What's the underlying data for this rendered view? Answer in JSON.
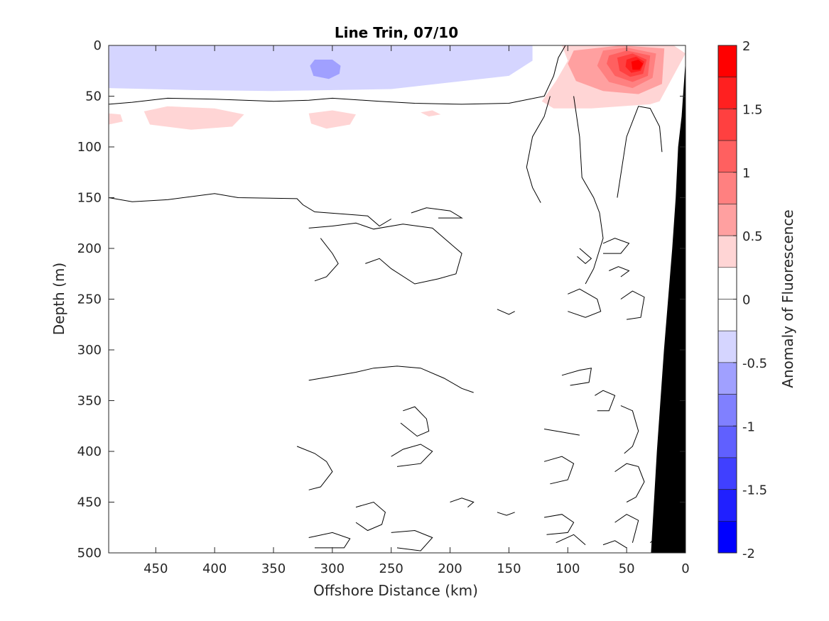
{
  "chart_data": {
    "type": "heatmap",
    "title": "Line Trin, 07/10",
    "xlabel": "Offshore Distance (km)",
    "ylabel": "Depth (m)",
    "colorbar_label": "Anomaly of Fluorescence",
    "xlim": [
      490,
      0
    ],
    "ylim": [
      0,
      500
    ],
    "clim": [
      -2,
      2
    ],
    "x_ticks": [
      450,
      400,
      350,
      300,
      250,
      200,
      150,
      100,
      50,
      0
    ],
    "y_ticks": [
      0,
      50,
      100,
      150,
      200,
      250,
      300,
      350,
      400,
      450,
      500
    ],
    "colorbar_ticks": [
      2,
      1.5,
      1,
      0.5,
      0,
      -0.5,
      -1,
      -1.5,
      -2
    ],
    "colorbar_levels": [
      {
        "from": 1.75,
        "to": 2.0,
        "color": "#ff0000"
      },
      {
        "from": 1.5,
        "to": 1.75,
        "color": "#ff2020"
      },
      {
        "from": 1.25,
        "to": 1.5,
        "color": "#ff4040"
      },
      {
        "from": 1.0,
        "to": 1.25,
        "color": "#ff6060"
      },
      {
        "from": 0.75,
        "to": 1.0,
        "color": "#ff8080"
      },
      {
        "from": 0.5,
        "to": 0.75,
        "color": "#ffa0a0"
      },
      {
        "from": 0.25,
        "to": 0.5,
        "color": "#ffd5d5"
      },
      {
        "from": 0.0,
        "to": 0.25,
        "color": "#ffffff"
      },
      {
        "from": -0.25,
        "to": 0.0,
        "color": "#ffffff"
      },
      {
        "from": -0.5,
        "to": -0.25,
        "color": "#d5d5ff"
      },
      {
        "from": -0.75,
        "to": -0.5,
        "color": "#a0a0ff"
      },
      {
        "from": -1.0,
        "to": -0.75,
        "color": "#8080ff"
      },
      {
        "from": -1.25,
        "to": -1.0,
        "color": "#6060ff"
      },
      {
        "from": -1.5,
        "to": -1.25,
        "color": "#4040ff"
      },
      {
        "from": -1.75,
        "to": -1.5,
        "color": "#2020ff"
      },
      {
        "from": -2.0,
        "to": -1.75,
        "color": "#0000ff"
      }
    ],
    "regions": [
      {
        "name": "negative-surface-band",
        "color": "#d5d5ff",
        "points": [
          [
            490,
            0
          ],
          [
            130,
            0
          ],
          [
            130,
            15
          ],
          [
            150,
            30
          ],
          [
            250,
            43
          ],
          [
            350,
            45
          ],
          [
            420,
            44
          ],
          [
            490,
            42
          ]
        ]
      },
      {
        "name": "negative-core-patch",
        "color": "#a0a0ff",
        "points": [
          [
            293,
            20
          ],
          [
            300,
            14
          ],
          [
            315,
            14
          ],
          [
            319,
            20
          ],
          [
            316,
            30
          ],
          [
            303,
            33
          ],
          [
            294,
            28
          ]
        ]
      },
      {
        "name": "positive-patch-1",
        "color": "#ffd5d5",
        "points": [
          [
            490,
            67
          ],
          [
            480,
            68
          ],
          [
            478,
            75
          ],
          [
            490,
            78
          ]
        ]
      },
      {
        "name": "positive-patch-2",
        "color": "#ffd5d5",
        "points": [
          [
            460,
            65
          ],
          [
            440,
            60
          ],
          [
            400,
            62
          ],
          [
            375,
            68
          ],
          [
            385,
            80
          ],
          [
            420,
            83
          ],
          [
            455,
            78
          ]
        ]
      },
      {
        "name": "positive-patch-3",
        "color": "#ffd5d5",
        "points": [
          [
            320,
            67
          ],
          [
            300,
            64
          ],
          [
            280,
            68
          ],
          [
            285,
            78
          ],
          [
            305,
            82
          ],
          [
            318,
            77
          ]
        ]
      },
      {
        "name": "positive-patch-4",
        "color": "#ffd5d5",
        "points": [
          [
            225,
            66
          ],
          [
            215,
            64
          ],
          [
            208,
            68
          ],
          [
            218,
            70
          ]
        ]
      },
      {
        "name": "positive-coastal-outer",
        "color": "#ffd5d5",
        "points": [
          [
            105,
            0
          ],
          [
            10,
            0
          ],
          [
            0,
            8
          ],
          [
            22,
            55
          ],
          [
            30,
            58
          ],
          [
            80,
            62
          ],
          [
            112,
            62
          ],
          [
            122,
            55
          ],
          [
            110,
            35
          ],
          [
            100,
            15
          ]
        ]
      },
      {
        "name": "positive-coastal-1",
        "color": "#ffa0a0",
        "points": [
          [
            95,
            5
          ],
          [
            55,
            0
          ],
          [
            18,
            3
          ],
          [
            20,
            38
          ],
          [
            40,
            48
          ],
          [
            70,
            45
          ],
          [
            93,
            35
          ],
          [
            100,
            18
          ]
        ]
      },
      {
        "name": "positive-coastal-2",
        "color": "#ff8080",
        "points": [
          [
            70,
            5
          ],
          [
            50,
            2
          ],
          [
            25,
            8
          ],
          [
            28,
            32
          ],
          [
            45,
            42
          ],
          [
            65,
            36
          ],
          [
            75,
            20
          ]
        ]
      },
      {
        "name": "positive-coastal-3",
        "color": "#ff6060",
        "points": [
          [
            65,
            10
          ],
          [
            50,
            5
          ],
          [
            30,
            10
          ],
          [
            32,
            30
          ],
          [
            45,
            36
          ],
          [
            60,
            30
          ],
          [
            67,
            18
          ]
        ]
      },
      {
        "name": "positive-coastal-4",
        "color": "#ff4040",
        "points": [
          [
            58,
            12
          ],
          [
            45,
            8
          ],
          [
            33,
            14
          ],
          [
            36,
            28
          ],
          [
            47,
            31
          ],
          [
            56,
            25
          ]
        ]
      },
      {
        "name": "positive-coastal-5",
        "color": "#ff2020",
        "points": [
          [
            50,
            14
          ],
          [
            42,
            11
          ],
          [
            35,
            16
          ],
          [
            38,
            25
          ],
          [
            46,
            27
          ],
          [
            51,
            21
          ]
        ]
      },
      {
        "name": "positive-coastal-core",
        "color": "#ff0000",
        "points": [
          [
            46,
            16
          ],
          [
            40,
            14
          ],
          [
            36,
            18
          ],
          [
            39,
            24
          ],
          [
            45,
            24
          ]
        ]
      }
    ],
    "contours": [
      [
        [
          490,
          58
        ],
        [
          470,
          56
        ],
        [
          440,
          52
        ],
        [
          400,
          53
        ],
        [
          350,
          55
        ],
        [
          320,
          54
        ],
        [
          300,
          52
        ],
        [
          260,
          55
        ],
        [
          230,
          57
        ],
        [
          190,
          58
        ],
        [
          150,
          57
        ],
        [
          120,
          50
        ],
        [
          112,
          30
        ],
        [
          108,
          12
        ],
        [
          102,
          0
        ]
      ],
      [
        [
          490,
          150
        ],
        [
          470,
          154
        ],
        [
          440,
          152
        ],
        [
          400,
          146
        ],
        [
          380,
          150
        ],
        [
          330,
          151
        ],
        [
          325,
          157
        ],
        [
          315,
          164
        ],
        [
          270,
          168
        ],
        [
          260,
          178
        ],
        [
          250,
          171
        ]
      ],
      [
        [
          123,
          155
        ],
        [
          130,
          140
        ],
        [
          135,
          120
        ],
        [
          130,
          90
        ],
        [
          120,
          70
        ],
        [
          115,
          50
        ]
      ],
      [
        [
          95,
          50
        ],
        [
          90,
          90
        ],
        [
          88,
          130
        ],
        [
          78,
          150
        ],
        [
          73,
          165
        ],
        [
          70,
          190
        ],
        [
          78,
          220
        ],
        [
          85,
          235
        ]
      ],
      [
        [
          58,
          150
        ],
        [
          50,
          90
        ],
        [
          40,
          60
        ],
        [
          30,
          62
        ],
        [
          22,
          80
        ],
        [
          20,
          105
        ]
      ],
      [
        [
          233,
          165
        ],
        [
          220,
          160
        ],
        [
          200,
          163
        ],
        [
          190,
          170
        ],
        [
          210,
          170
        ]
      ],
      [
        [
          320,
          180
        ],
        [
          300,
          178
        ],
        [
          280,
          175
        ],
        [
          265,
          181
        ],
        [
          240,
          176
        ],
        [
          215,
          180
        ],
        [
          200,
          195
        ],
        [
          190,
          205
        ],
        [
          195,
          225
        ],
        [
          210,
          230
        ],
        [
          230,
          235
        ],
        [
          250,
          220
        ],
        [
          260,
          210
        ],
        [
          272,
          215
        ]
      ],
      [
        [
          310,
          190
        ],
        [
          300,
          205
        ],
        [
          295,
          215
        ],
        [
          305,
          228
        ],
        [
          315,
          232
        ]
      ],
      [
        [
          90,
          200
        ],
        [
          85,
          205
        ],
        [
          80,
          210
        ],
        [
          85,
          215
        ],
        [
          92,
          208
        ]
      ],
      [
        [
          70,
          195
        ],
        [
          60,
          190
        ],
        [
          48,
          195
        ],
        [
          55,
          205
        ],
        [
          70,
          205
        ]
      ],
      [
        [
          65,
          222
        ],
        [
          57,
          218
        ],
        [
          48,
          222
        ],
        [
          55,
          228
        ]
      ],
      [
        [
          100,
          245
        ],
        [
          90,
          240
        ],
        [
          75,
          250
        ],
        [
          72,
          262
        ],
        [
          85,
          268
        ],
        [
          100,
          262
        ]
      ],
      [
        [
          55,
          250
        ],
        [
          45,
          242
        ],
        [
          35,
          248
        ],
        [
          38,
          268
        ],
        [
          50,
          270
        ]
      ],
      [
        [
          160,
          260
        ],
        [
          150,
          265
        ],
        [
          145,
          262
        ]
      ],
      [
        [
          320,
          330
        ],
        [
          300,
          326
        ],
        [
          280,
          322
        ],
        [
          265,
          318
        ],
        [
          245,
          316
        ],
        [
          225,
          318
        ],
        [
          205,
          328
        ],
        [
          190,
          338
        ],
        [
          180,
          342
        ]
      ],
      [
        [
          105,
          325
        ],
        [
          90,
          320
        ],
        [
          80,
          318
        ],
        [
          82,
          332
        ],
        [
          98,
          335
        ]
      ],
      [
        [
          77,
          345
        ],
        [
          70,
          340
        ],
        [
          60,
          345
        ],
        [
          65,
          360
        ],
        [
          75,
          360
        ]
      ],
      [
        [
          55,
          355
        ],
        [
          45,
          360
        ],
        [
          40,
          380
        ],
        [
          45,
          395
        ],
        [
          52,
          402
        ]
      ],
      [
        [
          120,
          378
        ],
        [
          105,
          381
        ],
        [
          90,
          384
        ]
      ],
      [
        [
          240,
          360
        ],
        [
          230,
          356
        ],
        [
          220,
          368
        ],
        [
          218,
          380
        ],
        [
          228,
          385
        ],
        [
          242,
          372
        ]
      ],
      [
        [
          330,
          395
        ],
        [
          315,
          402
        ],
        [
          305,
          410
        ],
        [
          300,
          420
        ],
        [
          310,
          435
        ],
        [
          320,
          438
        ]
      ],
      [
        [
          250,
          405
        ],
        [
          240,
          398
        ],
        [
          225,
          393
        ],
        [
          215,
          400
        ],
        [
          225,
          412
        ],
        [
          245,
          415
        ]
      ],
      [
        [
          120,
          410
        ],
        [
          105,
          405
        ],
        [
          95,
          412
        ],
        [
          100,
          428
        ],
        [
          115,
          432
        ]
      ],
      [
        [
          60,
          420
        ],
        [
          50,
          412
        ],
        [
          40,
          415
        ],
        [
          35,
          430
        ],
        [
          42,
          445
        ],
        [
          50,
          450
        ]
      ],
      [
        [
          280,
          455
        ],
        [
          265,
          450
        ],
        [
          255,
          460
        ],
        [
          258,
          472
        ],
        [
          270,
          478
        ],
        [
          280,
          470
        ]
      ],
      [
        [
          200,
          450
        ],
        [
          190,
          446
        ],
        [
          180,
          450
        ],
        [
          185,
          455
        ]
      ],
      [
        [
          160,
          460
        ],
        [
          152,
          463
        ],
        [
          145,
          460
        ]
      ],
      [
        [
          120,
          465
        ],
        [
          105,
          462
        ],
        [
          95,
          470
        ],
        [
          100,
          480
        ],
        [
          118,
          482
        ]
      ],
      [
        [
          60,
          470
        ],
        [
          50,
          462
        ],
        [
          40,
          468
        ],
        [
          45,
          490
        ]
      ],
      [
        [
          320,
          485
        ],
        [
          300,
          480
        ],
        [
          285,
          486
        ],
        [
          290,
          495
        ],
        [
          315,
          495
        ]
      ],
      [
        [
          250,
          480
        ],
        [
          230,
          478
        ],
        [
          215,
          485
        ],
        [
          225,
          498
        ],
        [
          245,
          495
        ]
      ],
      [
        [
          110,
          490
        ],
        [
          95,
          482
        ],
        [
          85,
          492
        ]
      ],
      [
        [
          70,
          492
        ],
        [
          60,
          488
        ],
        [
          50,
          495
        ]
      ],
      [
        [
          30,
          490
        ],
        [
          25,
          485
        ],
        [
          20,
          492
        ]
      ]
    ],
    "bathymetry": [
      [
        0,
        0
      ],
      [
        0,
        500
      ],
      [
        29,
        500
      ],
      [
        24,
        400
      ],
      [
        18,
        300
      ],
      [
        11,
        200
      ],
      [
        8,
        150
      ],
      [
        6,
        100
      ],
      [
        3,
        70
      ],
      [
        0,
        20
      ]
    ]
  }
}
